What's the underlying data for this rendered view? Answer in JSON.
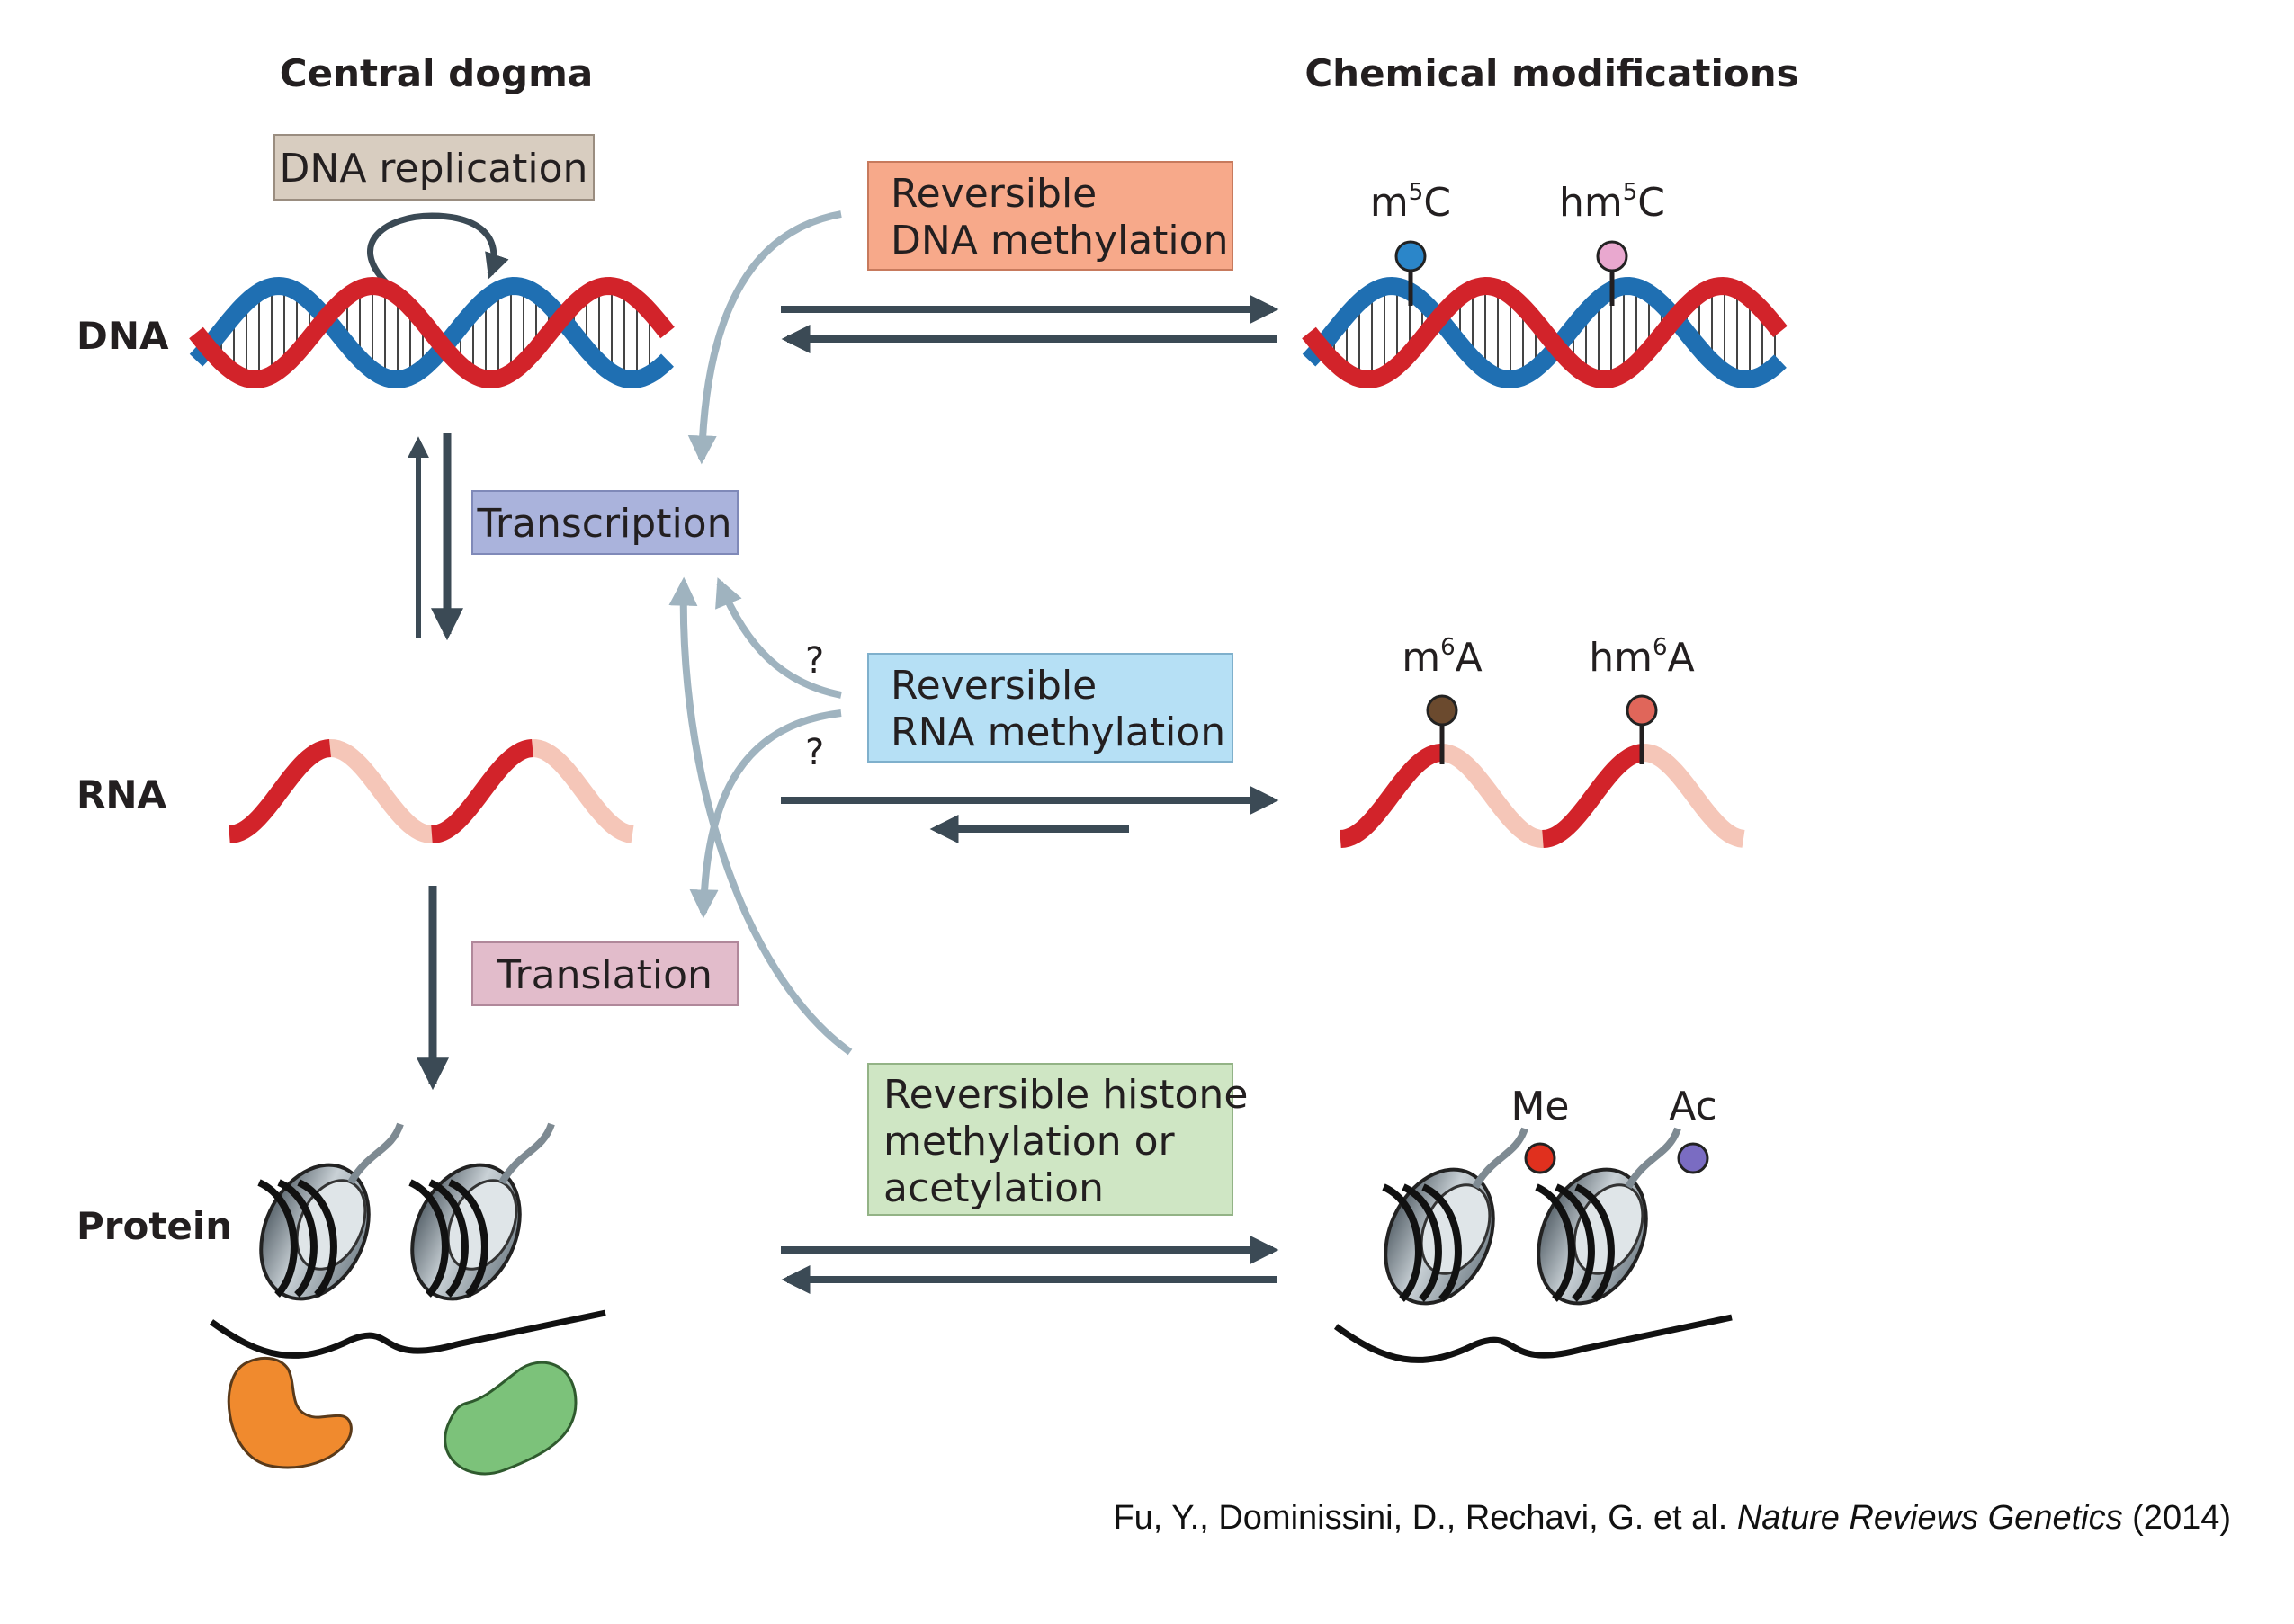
{
  "headings": {
    "central_dogma": "Central dogma",
    "chemical_modifications": "Chemical modifications"
  },
  "rows": {
    "dna": "DNA",
    "rna": "RNA",
    "protein": "Protein"
  },
  "process_boxes": {
    "dna_replication": "DNA replication",
    "transcription": "Transcription",
    "translation": "Translation"
  },
  "modification_boxes": {
    "dna_methylation": [
      "Reversible",
      "DNA methylation"
    ],
    "rna_methylation": [
      "Reversible",
      "RNA methylation"
    ],
    "histone": [
      "Reversible histone",
      "methylation or",
      "acetylation"
    ]
  },
  "modifications": {
    "dna": [
      {
        "prefix": "m",
        "sup": "5",
        "base": "C",
        "color": "#2b86c9"
      },
      {
        "prefix": "hm",
        "sup": "5",
        "base": "C",
        "color": "#e9a8cf"
      }
    ],
    "rna": [
      {
        "prefix": "m",
        "sup": "6",
        "base": "A",
        "color": "#6b4a2e"
      },
      {
        "prefix": "hm",
        "sup": "6",
        "base": "A",
        "color": "#e0665a"
      }
    ],
    "protein": [
      {
        "prefix": "Me",
        "sup": "",
        "base": "",
        "color": "#e0301e"
      },
      {
        "prefix": "Ac",
        "sup": "",
        "base": "",
        "color": "#7a6cc2"
      }
    ]
  },
  "question_marks": [
    "?",
    "?"
  ],
  "citation": {
    "authors": "Fu, Y., Dominissini, D., Rechavi, G. et al.",
    "journal": "Nature Reviews Genetics",
    "year": "(2014)"
  },
  "colors": {
    "dna_red": "#d2232a",
    "dna_blue": "#1f6fb2",
    "rna_pale": "#f5c6b8",
    "box_replication": "#d8cdc0",
    "box_transcription": "#aab3dc",
    "box_translation": "#e2bccb",
    "box_dna_meth": "#f7a98a",
    "box_rna_meth": "#b6e0f5",
    "box_histone": "#cfe6c4",
    "arrow_dark": "#3b4a55",
    "arrow_light": "#9fb3bf",
    "enzyme_orange": "#f08a2e",
    "enzyme_green": "#7cc27a"
  }
}
